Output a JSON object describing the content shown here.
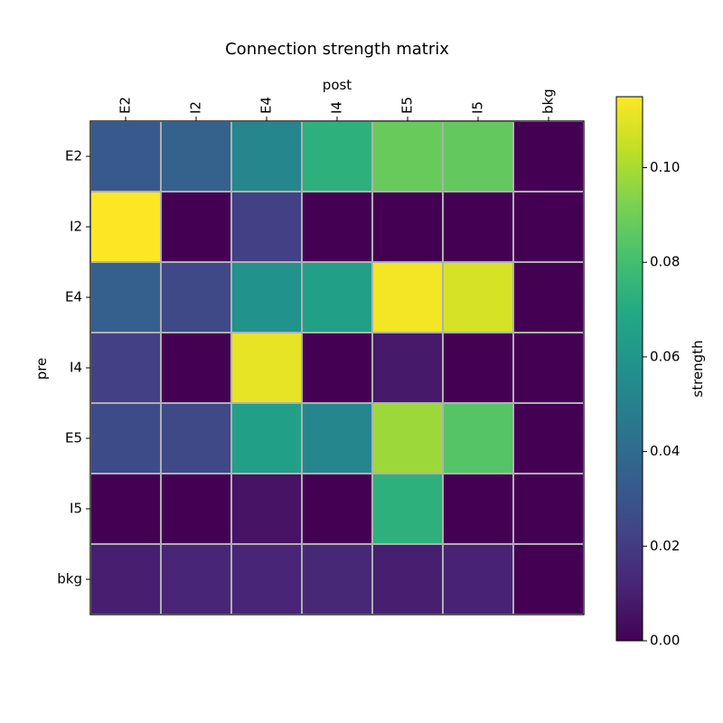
{
  "chart_data": {
    "type": "heatmap",
    "title": "Connection strength matrix",
    "xlabel": "post",
    "ylabel": "pre",
    "x_categories": [
      "E2",
      "I2",
      "E4",
      "I4",
      "E5",
      "I5",
      "bkg"
    ],
    "y_categories": [
      "E2",
      "I2",
      "E4",
      "I4",
      "E5",
      "I5",
      "bkg"
    ],
    "values": [
      [
        0.032,
        0.036,
        0.053,
        0.073,
        0.088,
        0.087,
        0.0
      ],
      [
        0.115,
        0.0,
        0.022,
        0.0,
        0.0,
        0.0,
        0.0
      ],
      [
        0.035,
        0.025,
        0.058,
        0.065,
        0.113,
        0.108,
        0.0
      ],
      [
        0.022,
        0.0,
        0.111,
        0.0,
        0.008,
        0.0,
        0.0
      ],
      [
        0.026,
        0.025,
        0.065,
        0.053,
        0.098,
        0.084,
        0.0
      ],
      [
        0.0,
        0.0,
        0.006,
        0.0,
        0.073,
        0.0,
        0.0
      ],
      [
        0.01,
        0.012,
        0.012,
        0.013,
        0.01,
        0.011,
        0.0
      ]
    ],
    "colorbar": {
      "label": "strength",
      "range": [
        0.0,
        0.115
      ],
      "ticks": [
        0.0,
        0.02,
        0.04,
        0.06,
        0.08,
        0.1
      ],
      "tick_labels": [
        "0.00",
        "0.02",
        "0.04",
        "0.06",
        "0.08",
        "0.10"
      ],
      "colormap": "viridis"
    },
    "grid": true,
    "grid_color": "#b0b0b0"
  }
}
